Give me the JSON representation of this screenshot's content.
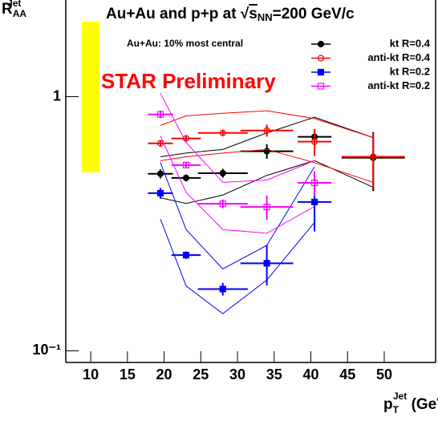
{
  "chart_data": {
    "type": "scatter",
    "log_y": true,
    "title": [
      "Au+Au and p+p at √",
      "s",
      "NN",
      "=200 GeV/c"
    ],
    "annotations": [
      "Au+Au: 10% most central",
      "STAR Preliminary"
    ],
    "xlabel": [
      "p",
      "T",
      "Jet",
      " (GeV/c)"
    ],
    "ylabel": [
      "R",
      "AA",
      "Jet"
    ],
    "xlim": [
      6.6,
      57
    ],
    "ylim": [
      0.09,
      2.4
    ],
    "xticks": [
      10,
      15,
      20,
      25,
      30,
      35,
      40,
      45,
      50
    ],
    "yticks": [
      {
        "value": 0.1,
        "label": "10⁻¹"
      },
      1
    ],
    "legend": "top-right",
    "norm_uncertainty": {
      "x": 10,
      "low": 0.504,
      "high": 1.97,
      "color": "#ffff00"
    },
    "series": [
      {
        "name": "kt R=0.4",
        "color": "#000000",
        "marker": "circle",
        "filled": true,
        "x": [
          19.5,
          23,
          28,
          34,
          40.5,
          48.5
        ],
        "values": [
          0.497,
          0.479,
          0.5,
          0.61,
          0.695,
          0.575
        ],
        "xerr": [
          1.7,
          2,
          3.4,
          3.6,
          2.3,
          4.3
        ],
        "yerr": [
          0.02,
          0.015,
          0.02,
          0.04,
          0.05,
          0.15
        ],
        "sys_high": [
          0.58,
          0.6,
          0.62,
          0.72,
          0.83,
          0.69
        ],
        "sys_low": [
          0.4,
          0.38,
          0.41,
          0.49,
          0.56,
          0.44
        ]
      },
      {
        "name": "anti-kt R=0.4",
        "color": "#ff0000",
        "marker": "circle",
        "filled": false,
        "x": [
          19.5,
          23,
          28,
          34,
          40.5,
          48.5
        ],
        "values": [
          0.655,
          0.685,
          0.72,
          0.736,
          0.665,
          0.58
        ],
        "xerr": [
          1.7,
          2,
          3.4,
          3.6,
          2.3,
          4.3
        ],
        "yerr": [
          0.02,
          0.02,
          0.02,
          0.04,
          0.08,
          0.14
        ],
        "sys_high": [
          0.77,
          0.84,
          0.86,
          0.88,
          0.82,
          0.69
        ],
        "sys_low": [
          0.56,
          0.58,
          0.6,
          0.62,
          0.55,
          0.46
        ]
      },
      {
        "name": "kt R=0.2",
        "color": "#0000ff",
        "marker": "square",
        "filled": true,
        "x": [
          19.5,
          23,
          28,
          34,
          40.5
        ],
        "values": [
          0.417,
          0.238,
          0.175,
          0.221,
          0.385
        ],
        "xerr": [
          1.7,
          2,
          3.4,
          3.6,
          2.3
        ],
        "yerr": [
          0.02,
          0.008,
          0.01,
          0.04,
          0.09
        ],
        "sys_high": [
          0.55,
          0.3,
          0.21,
          0.26,
          0.53
        ],
        "sys_low": [
          0.33,
          0.18,
          0.14,
          0.19,
          0.32
        ]
      },
      {
        "name": "anti-kt R=0.2",
        "color": "#ff00ff",
        "marker": "square",
        "filled": false,
        "x": [
          19.5,
          23,
          28,
          34,
          40.5
        ],
        "values": [
          0.852,
          0.538,
          0.379,
          0.368,
          0.458
        ],
        "xerr": [
          1.7,
          2,
          3.4,
          3.6,
          2.3
        ],
        "yerr": [
          0.03,
          0.015,
          0.015,
          0.04,
          0.05
        ],
        "sys_high": [
          1.03,
          0.66,
          0.46,
          0.47,
          0.56
        ],
        "sys_low": [
          0.7,
          0.42,
          0.3,
          0.29,
          0.37
        ]
      }
    ]
  }
}
